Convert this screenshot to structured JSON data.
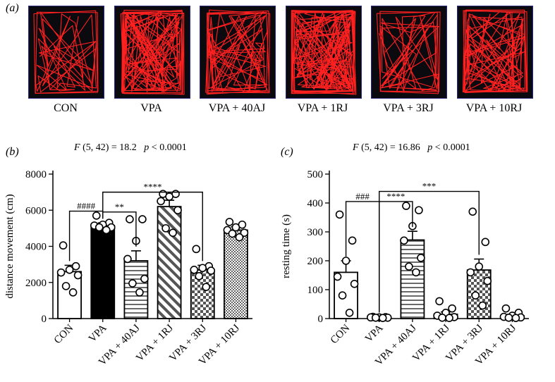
{
  "panel_a": {
    "label": "(a)",
    "groups": [
      "CON",
      "VPA",
      "VPA + 40AJ",
      "VPA + 1RJ",
      "VPA + 3RJ",
      "VPA + 10RJ"
    ],
    "track_color": "#ff2020",
    "box_bg": "#0a0a0f",
    "box_border": "#2b2b7a"
  },
  "panel_b": {
    "label": "(b)",
    "stats": {
      "f_label": "F",
      "f_rest": "(5, 42) = 18.2",
      "p_label": "p",
      "p_rest": "< 0.0001"
    }
  },
  "panel_c": {
    "label": "(c)",
    "stats": {
      "f_label": "F",
      "f_rest": "(5, 42) = 16.86",
      "p_label": "p",
      "p_rest": "< 0.0001"
    }
  },
  "chart_data": [
    {
      "type": "bar",
      "panel": "b",
      "categories": [
        "CON",
        "VPA",
        "VPA + 40AJ",
        "VPA + 1RJ",
        "VPA + 3RJ",
        "VPA + 10RJ"
      ],
      "values": [
        2600,
        5150,
        3200,
        6200,
        2700,
        4900
      ],
      "errors": [
        350,
        150,
        550,
        350,
        250,
        180
      ],
      "points": [
        [
          4050,
          2900,
          2700,
          2550,
          2400,
          1800,
          1450
        ],
        [
          5700,
          5300,
          5200,
          5150,
          5050,
          5050,
          4900
        ],
        [
          5500,
          5500,
          4300,
          3300,
          2200,
          1950,
          1450
        ],
        [
          6900,
          6900,
          6750,
          6500,
          6000,
          5000,
          4750
        ],
        [
          3850,
          2900,
          2800,
          2700,
          2650,
          2350,
          1750
        ],
        [
          5350,
          5200,
          5050,
          4900,
          4750,
          4700,
          4500
        ]
      ],
      "patterns": [
        "white",
        "black",
        "hlines",
        "diag",
        "checker-coarse",
        "checker-fine"
      ],
      "ylabel": "distance movement (cm)",
      "ylim": [
        0,
        8000
      ],
      "yticks": [
        0,
        2000,
        4000,
        6000,
        8000
      ],
      "brackets": [
        {
          "from": 0,
          "to": 1,
          "text": "####",
          "y": 5950
        },
        {
          "from": 1,
          "to": 2,
          "text": "**",
          "y": 5900
        },
        {
          "from": 1,
          "to": 4,
          "text": "****",
          "y": 7000
        }
      ]
    },
    {
      "type": "bar",
      "panel": "c",
      "categories": [
        "CON",
        "VPA",
        "VPA + 40AJ",
        "VPA + 1RJ",
        "VPA + 3RJ",
        "VPA + 10RJ"
      ],
      "values": [
        160,
        4,
        272,
        15,
        168,
        10
      ],
      "errors": [
        40,
        2,
        30,
        8,
        38,
        5
      ],
      "points": [
        [
          360,
          270,
          200,
          145,
          120,
          80,
          20
        ],
        [
          6,
          5,
          4,
          4,
          3,
          3,
          2
        ],
        [
          390,
          375,
          320,
          270,
          210,
          180,
          160
        ],
        [
          60,
          35,
          20,
          10,
          5,
          3,
          2
        ],
        [
          370,
          265,
          180,
          160,
          130,
          80,
          45
        ],
        [
          35,
          20,
          10,
          6,
          4,
          3,
          2
        ]
      ],
      "patterns": [
        "white",
        "white",
        "hlines",
        "diag",
        "checker-coarse",
        "checker-fine"
      ],
      "ylabel": "resting time (s)",
      "ylim": [
        0,
        500
      ],
      "yticks": [
        0,
        100,
        200,
        300,
        400,
        500
      ],
      "brackets": [
        {
          "from": 0,
          "to": 1,
          "text": "###",
          "y": 405
        },
        {
          "from": 1,
          "to": 2,
          "text": "****",
          "y": 405
        },
        {
          "from": 1,
          "to": 4,
          "text": "***",
          "y": 440
        }
      ]
    }
  ]
}
